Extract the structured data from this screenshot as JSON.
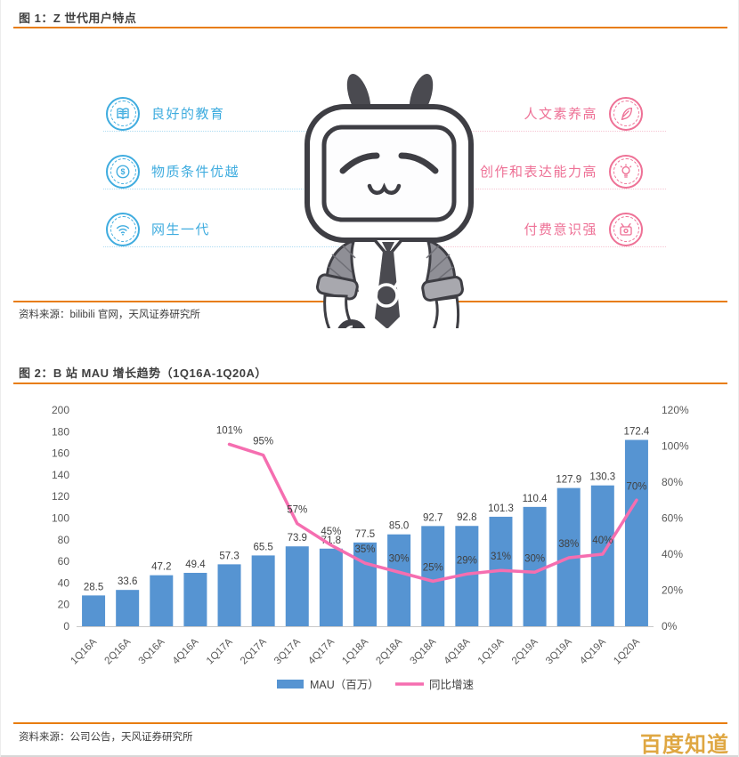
{
  "figure1": {
    "title": "图 1：Z 世代用户特点",
    "source": "资料来源：bilibili 官网，天风证券研究所",
    "mascot": "bilibili-tv-mascot",
    "left_features": [
      {
        "icon": "book-icon",
        "label": "良好的教育"
      },
      {
        "icon": "coin-icon",
        "label": "物质条件优越"
      },
      {
        "icon": "wifi-icon",
        "label": "网生一代"
      }
    ],
    "right_features": [
      {
        "icon": "quill-icon",
        "label": "人文素养高"
      },
      {
        "icon": "bulb-icon",
        "label": "创作和表达能力高"
      },
      {
        "icon": "tv-icon",
        "label": "付费意识强"
      }
    ]
  },
  "figure2": {
    "title": "图 2：B 站 MAU 增长趋势（1Q16A-1Q20A）",
    "source": "资料来源：公司公告，天风证券研究所",
    "chart_data": {
      "type": "bar+line",
      "categories": [
        "1Q16A",
        "2Q16A",
        "3Q16A",
        "4Q16A",
        "1Q17A",
        "2Q17A",
        "3Q17A",
        "4Q17A",
        "1Q18A",
        "2Q18A",
        "3Q18A",
        "4Q18A",
        "1Q19A",
        "2Q19A",
        "3Q19A",
        "4Q19A",
        "1Q20A"
      ],
      "series": [
        {
          "name": "MAU（百万）",
          "type": "bar",
          "axis": "left",
          "color": "#5694d2",
          "values": [
            28.5,
            33.6,
            47.2,
            49.4,
            57.3,
            65.5,
            73.9,
            71.8,
            77.5,
            85.0,
            92.7,
            92.8,
            101.3,
            110.4,
            127.9,
            130.3,
            172.4
          ]
        },
        {
          "name": "同比增速",
          "type": "line",
          "axis": "right",
          "color": "#f56eb0",
          "unit": "%",
          "values": [
            null,
            null,
            null,
            null,
            101,
            95,
            57,
            45,
            35,
            30,
            25,
            29,
            31,
            30,
            38,
            40,
            70
          ]
        }
      ],
      "left_axis": {
        "min": 0,
        "max": 200,
        "step": 20
      },
      "right_axis": {
        "min": 0,
        "max": 120,
        "step": 20,
        "format": "percent"
      },
      "grid": false,
      "legend": [
        "MAU（百万）",
        "同比增速"
      ],
      "legend_position": "bottom"
    }
  },
  "watermark": "百度知道",
  "colors": {
    "rule_orange": "#e87d0d",
    "feature_blue": "#3facdf",
    "feature_pink": "#ee7196",
    "bar_blue": "#5694d2",
    "line_pink": "#f56eb0",
    "axis_text": "#595959",
    "label_text": "#404040",
    "watermark_gold": "#dfa742"
  }
}
